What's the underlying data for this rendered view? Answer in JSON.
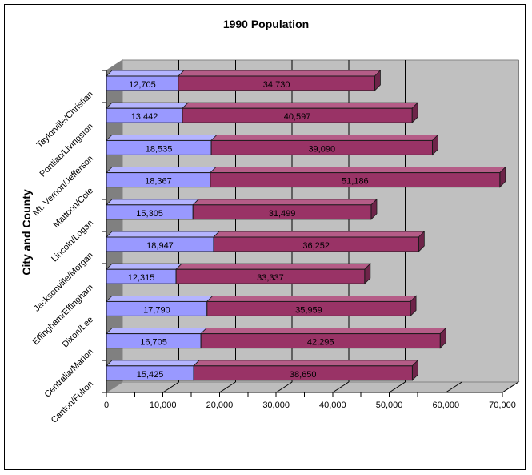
{
  "chart_data": {
    "type": "bar",
    "orientation": "horizontal",
    "stacked": true,
    "effect_3d": true,
    "title": "1990 Population",
    "ylabel": "City and County",
    "xlabel": "",
    "legend": "none",
    "grid": true,
    "xlim": [
      0,
      70000
    ],
    "xtick_interval": 10000,
    "xtick_minor_interval": 5000,
    "xtick_labels": [
      "0",
      "10,000",
      "20,000",
      "30,000",
      "40,000",
      "50,000",
      "60,000",
      "70,000"
    ],
    "categories": [
      "Taylorville/Christian",
      "Pontiac/Livingston",
      "Mt. Vernon/Jefferson",
      "Mattoon/Cole",
      "Lincoln/Logan",
      "Jacksonville/Morgan",
      "Effingham/Effingham",
      "Dixon/Lee",
      "Centralia/Marion",
      "Canton/Fulton"
    ],
    "series": [
      {
        "color": "#9999FF",
        "values": [
          12705,
          13442,
          18535,
          18367,
          15305,
          18947,
          12315,
          17790,
          16705,
          15425
        ],
        "labels": [
          "12,705",
          "13,442",
          "18,535",
          "18,367",
          "15,305",
          "18,947",
          "12,315",
          "17,790",
          "16,705",
          "15,425"
        ]
      },
      {
        "color": "#993366",
        "values": [
          34730,
          40597,
          39090,
          51186,
          31499,
          36252,
          33337,
          35959,
          42295,
          38650
        ],
        "labels": [
          "34,730",
          "40,597",
          "39,090",
          "51,186",
          "31,499",
          "36,252",
          "33,337",
          "35,959",
          "42,295",
          "38,650"
        ]
      }
    ]
  },
  "colors": {
    "background": "#FFFFFF",
    "frame_border": "#000000",
    "wall": "#C0C0C0",
    "wall_border": "#848484",
    "side_wall": "#808080",
    "floor": "#BDBDBD",
    "gridline": "#000000",
    "axis": "#000000",
    "bar_outline": "#1A1A1A",
    "series1": "#9999FF",
    "series1_top": "#B4B4FF",
    "series2": "#993366",
    "series2_top": "#B55C87",
    "series2_side": "#6E2449",
    "label_text": "#000000"
  }
}
